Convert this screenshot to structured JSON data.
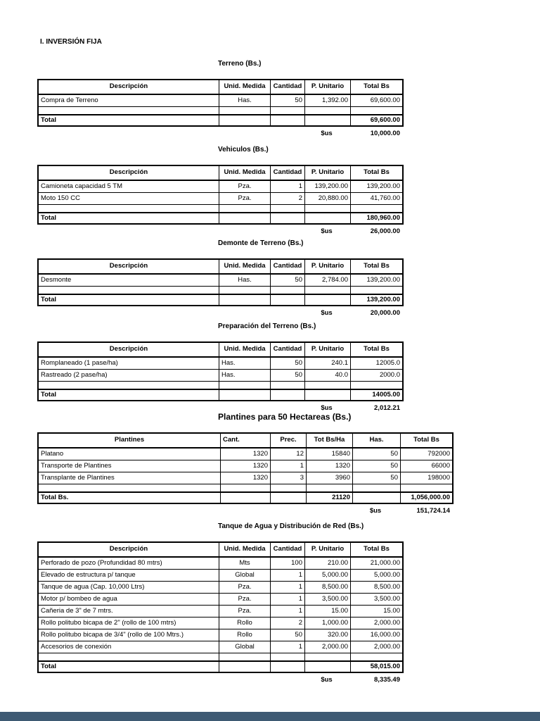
{
  "page": {
    "heading": "I. INVERSIÓN FIJA",
    "background_color": "#ffffff",
    "footer_bar_color": "#3e5a73"
  },
  "sus_label": "$us",
  "sections": [
    {
      "title": "Terreno (Bs.)",
      "title_large": false,
      "columns": [
        "Descripción",
        "Unid. Medida",
        "Cantidad",
        "P. Unitario",
        "Total Bs"
      ],
      "aligns": [
        "left",
        "center",
        "right",
        "right",
        "right"
      ],
      "rows": [
        [
          "Compra de Terreno",
          "Has.",
          "50",
          "1,392.00",
          "69,600.00"
        ]
      ],
      "totals": [
        "Total",
        "",
        "",
        "",
        "69,600.00"
      ],
      "sus_value": "10,000.00"
    },
    {
      "title": "Vehiculos (Bs.)",
      "title_large": false,
      "columns": [
        "Descripción",
        "Unid. Medida",
        "Cantidad",
        "P. Unitario",
        "Total Bs"
      ],
      "aligns": [
        "left",
        "center",
        "right",
        "right",
        "right"
      ],
      "rows": [
        [
          "Camioneta capacidad 5 TM",
          "Pza.",
          "1",
          "139,200.00",
          "139,200.00"
        ],
        [
          "Moto 150 CC",
          "Pza.",
          "2",
          "20,880.00",
          "41,760.00"
        ]
      ],
      "totals": [
        "Total",
        "",
        "",
        "",
        "180,960.00"
      ],
      "sus_value": "26,000.00"
    },
    {
      "title": "Demonte de Terreno (Bs.)",
      "title_large": false,
      "columns": [
        "Descripción",
        "Unid. Medida",
        "Cantidad",
        "P. Unitario",
        "Total Bs"
      ],
      "aligns": [
        "left",
        "center",
        "right",
        "right",
        "right"
      ],
      "rows": [
        [
          "Desmonte",
          "Has.",
          "50",
          "2,784.00",
          "139,200.00"
        ]
      ],
      "totals": [
        "Total",
        "",
        "",
        "",
        "139,200.00"
      ],
      "sus_value": "20,000.00"
    },
    {
      "title": "Preparación del Terreno (Bs.)",
      "title_large": false,
      "columns": [
        "Descripción",
        "Unid. Medida",
        "Cantidad",
        "P. Unitario",
        "Total Bs"
      ],
      "aligns": [
        "left",
        "left",
        "right",
        "right",
        "right"
      ],
      "rows": [
        [
          "Romplaneado (1 pase/ha)",
          "Has.",
          "50",
          "240.1",
          "12005.0"
        ],
        [
          "Rastreado  (2 pase/ha)",
          "Has.",
          "50",
          "40.0",
          "2000.0"
        ]
      ],
      "totals": [
        "Total",
        "",
        "",
        "",
        "14005.00"
      ],
      "sus_value": "2,012.21"
    },
    {
      "title": "Plantines para 50 Hectareas (Bs.)",
      "title_large": true,
      "columns": [
        "Plantines",
        "Cant.",
        "Prec.",
        "Tot Bs/Ha",
        "Has.",
        "Total Bs"
      ],
      "header_aligns": [
        "center",
        "left",
        "center",
        "center",
        "center",
        "center"
      ],
      "aligns": [
        "left",
        "right",
        "right",
        "right",
        "right",
        "right"
      ],
      "rows": [
        [
          "Platano",
          "1320",
          "12",
          "15840",
          "50",
          "792000"
        ],
        [
          "Transporte de Plantines",
          "1320",
          "1",
          "1320",
          "50",
          "66000"
        ],
        [
          "Transplante de Plantines",
          "1320",
          "3",
          "3960",
          "50",
          "198000"
        ]
      ],
      "totals": [
        "Total Bs.",
        "",
        "",
        "21120",
        "",
        "1,056,000.00"
      ],
      "sus_value": "151,724.14"
    },
    {
      "title": "Tanque de Agua y Distribución de Red (Bs.)",
      "title_large": false,
      "columns": [
        "Descripción",
        "Unid. Medida",
        "Cantidad",
        "P. Unitario",
        "Total Bs"
      ],
      "aligns": [
        "left",
        "center",
        "right",
        "right",
        "right"
      ],
      "rows": [
        [
          "Perforado de pozo (Profundidad 80 mtrs)",
          "Mts",
          "100",
          "210.00",
          "21,000.00"
        ],
        [
          "Elevado de estructura p/ tanque",
          "Global",
          "1",
          "5,000.00",
          "5,000.00"
        ],
        [
          "Tanque de agua (Cap. 10,000 Ltrs)",
          "Pza.",
          "1",
          "8,500.00",
          "8,500.00"
        ],
        [
          "Motor p/ bombeo de agua",
          "Pza.",
          "1",
          "3,500.00",
          "3,500.00"
        ],
        [
          "Cañeria de 3\" de 7 mtrs.",
          "Pza.",
          "1",
          "15.00",
          "15.00"
        ],
        [
          "Rollo politubo bicapa de 2\" (rollo de 100 mtrs)",
          "Rollo",
          "2",
          "1,000.00",
          "2,000.00"
        ],
        [
          "Rollo politubo bicapa de 3/4\" (rollo de 100 Mtrs.)",
          "Rollo",
          "50",
          "320.00",
          "16,000.00"
        ],
        [
          "Accesorios de conexión",
          "Global",
          "1",
          "2,000.00",
          "2,000.00"
        ]
      ],
      "totals": [
        "Total",
        "",
        "",
        "",
        "58,015.00"
      ],
      "sus_value": "8,335.49"
    }
  ]
}
